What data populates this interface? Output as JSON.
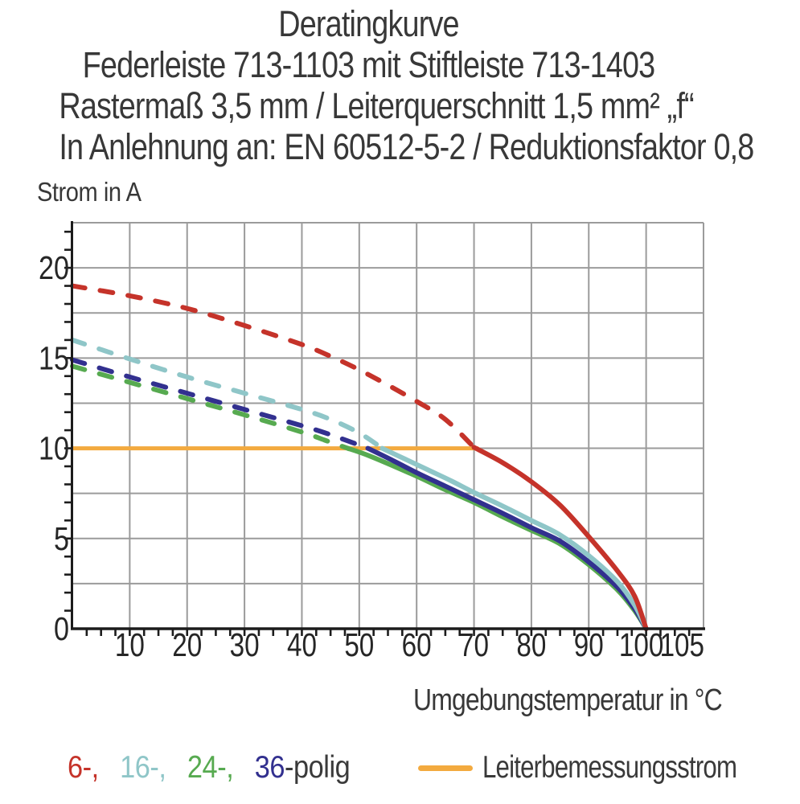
{
  "header": {
    "line1": "Deratingkurve",
    "line2": "Federleiste 713-1103 mit Stiftleiste 713-1403",
    "line3": "Rastermaß 3,5 mm / Leiterquerschnitt 1,5 mm² „f“",
    "line4": "In Anlehnung an: EN 60512-5-2 / Reduktionsfaktor 0,8"
  },
  "chart_data": {
    "type": "line",
    "title": "Deratingkurve Federleiste 713-1103 mit Stiftleiste 713-1403",
    "ylabel": "Strom in A",
    "xlabel": "Umgebungstemperatur in °C",
    "xlim": [
      0,
      110
    ],
    "ylim": [
      0,
      22.5
    ],
    "grid": true,
    "x_grid_step": 10,
    "y_grid_step": 2.5,
    "x_minor_tick_step": 2.5,
    "y_minor_tick_step": 1,
    "x_ticks": [
      {
        "v": 10,
        "label": "10"
      },
      {
        "v": 20,
        "label": "20"
      },
      {
        "v": 30,
        "label": "30"
      },
      {
        "v": 40,
        "label": "40"
      },
      {
        "v": 50,
        "label": "50"
      },
      {
        "v": 60,
        "label": "60"
      },
      {
        "v": 70,
        "label": "70"
      },
      {
        "v": 80,
        "label": "80"
      },
      {
        "v": 90,
        "label": "90"
      },
      {
        "v": 100,
        "label": "100",
        "dx": -6
      },
      {
        "v": 105,
        "label": "105",
        "dx": 9
      }
    ],
    "y_ticks": [
      {
        "v": 0,
        "label": "0"
      },
      {
        "v": 5,
        "label": "5"
      },
      {
        "v": 10,
        "label": "10"
      },
      {
        "v": 15,
        "label": "15"
      },
      {
        "v": 20,
        "label": "20"
      }
    ],
    "colors": {
      "grid": "#9b9b9b",
      "axis": "#1c1c1c",
      "tick_label": "#262626",
      "pole6": "#c5332a",
      "pole16": "#8fc6c8",
      "pole24": "#57aa50",
      "pole36": "#32308f",
      "rated_current": "#f3aa3f"
    },
    "series": [
      {
        "name": "Leiterbemessungsstrom",
        "color": "#f3aa3f",
        "width": 5,
        "segments": [
          {
            "style": "solid",
            "points": [
              [
                0,
                10
              ],
              [
                70.6,
                10
              ]
            ]
          }
        ]
      },
      {
        "name": "24-polig",
        "color": "#57aa50",
        "width": 6,
        "segments": [
          {
            "style": "dashed",
            "points": [
              [
                0,
                14.55
              ],
              [
                10,
                13.65
              ],
              [
                20,
                12.75
              ],
              [
                30,
                11.85
              ],
              [
                40,
                10.9
              ],
              [
                44,
                10.45
              ],
              [
                48,
                10
              ]
            ]
          },
          {
            "style": "solid",
            "points": [
              [
                48,
                10
              ],
              [
                52,
                9.55
              ],
              [
                60,
                8.45
              ],
              [
                65,
                7.7
              ],
              [
                70,
                7.0
              ],
              [
                75,
                6.2
              ],
              [
                80,
                5.45
              ],
              [
                85,
                4.7
              ],
              [
                90,
                3.55
              ],
              [
                95,
                2.15
              ],
              [
                98,
                1.0
              ],
              [
                100,
                0
              ]
            ]
          }
        ]
      },
      {
        "name": "36-polig",
        "color": "#32308f",
        "width": 6,
        "segments": [
          {
            "style": "dashed",
            "points": [
              [
                0,
                14.9
              ],
              [
                10,
                13.95
              ],
              [
                20,
                13.05
              ],
              [
                30,
                12.15
              ],
              [
                40,
                11.25
              ],
              [
                45,
                10.75
              ],
              [
                51.5,
                10
              ]
            ]
          },
          {
            "style": "solid",
            "points": [
              [
                51.5,
                10
              ],
              [
                56,
                9.3
              ],
              [
                60,
                8.65
              ],
              [
                65,
                7.9
              ],
              [
                70,
                7.15
              ],
              [
                75,
                6.4
              ],
              [
                80,
                5.6
              ],
              [
                85,
                4.85
              ],
              [
                90,
                3.7
              ],
              [
                95,
                2.3
              ],
              [
                98,
                1.1
              ],
              [
                100,
                0
              ]
            ]
          }
        ]
      },
      {
        "name": "16-polig",
        "color": "#8fc6c8",
        "width": 6,
        "segments": [
          {
            "style": "dashed",
            "points": [
              [
                0,
                16.0
              ],
              [
                10,
                14.95
              ],
              [
                20,
                13.95
              ],
              [
                30,
                13.05
              ],
              [
                40,
                12.15
              ],
              [
                45,
                11.6
              ],
              [
                50,
                10.85
              ],
              [
                54,
                10
              ]
            ]
          },
          {
            "style": "solid",
            "points": [
              [
                54,
                10
              ],
              [
                58,
                9.4
              ],
              [
                62,
                8.8
              ],
              [
                66,
                8.2
              ],
              [
                70,
                7.55
              ],
              [
                75,
                6.8
              ],
              [
                80,
                6.0
              ],
              [
                85,
                5.2
              ],
              [
                90,
                4.05
              ],
              [
                95,
                2.6
              ],
              [
                98,
                1.3
              ],
              [
                100,
                0
              ]
            ]
          }
        ]
      },
      {
        "name": "6-polig",
        "color": "#c5332a",
        "width": 6,
        "segments": [
          {
            "style": "dashed",
            "points": [
              [
                0,
                19.0
              ],
              [
                10,
                18.45
              ],
              [
                20,
                17.75
              ],
              [
                30,
                16.8
              ],
              [
                40,
                15.75
              ],
              [
                45,
                15.1
              ],
              [
                50,
                14.35
              ],
              [
                55,
                13.5
              ],
              [
                60,
                12.6
              ],
              [
                65,
                11.6
              ],
              [
                70,
                10.05
              ]
            ]
          },
          {
            "style": "solid",
            "points": [
              [
                70,
                10.05
              ],
              [
                75,
                9.2
              ],
              [
                80,
                8.15
              ],
              [
                85,
                6.85
              ],
              [
                90,
                5.1
              ],
              [
                95,
                3.2
              ],
              [
                98,
                1.8
              ],
              [
                100,
                0
              ]
            ]
          }
        ]
      }
    ]
  },
  "legend": {
    "poles_items": [
      {
        "label": "6-,",
        "color": "#c5332a"
      },
      {
        "label": "16-,",
        "color": "#8fc6c8"
      },
      {
        "label": "24-,",
        "color": "#57aa50"
      },
      {
        "label": "36",
        "color": "#32308f"
      },
      {
        "label": "-polig",
        "color": "#3a3a3a",
        "attached": true
      }
    ],
    "rated_current": {
      "label": "Leiterbemessungsstrom",
      "color": "#f3aa3f"
    }
  }
}
